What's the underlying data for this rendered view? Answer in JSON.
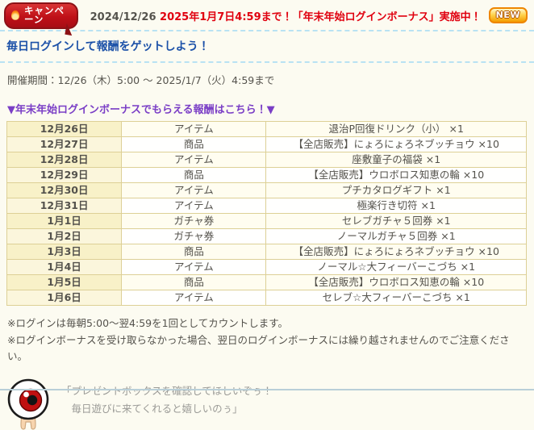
{
  "banner": {
    "badge_label": "キャンペーン",
    "date_prefix": "2024/12/26 ",
    "message": "2025年1月7日4:59まで！「年末年始ログインボーナス」実施中！",
    "new_label": "NEW"
  },
  "headline": "毎日ログインして報酬をゲットしよう！",
  "period": "開催期間：12/26（木）5:00 ～ 2025/1/7（火）4:59まで",
  "table": {
    "caption": "▼年末年始ログインボーナスでもらえる報酬はこちら！▼",
    "rows": [
      {
        "date": "12月26日",
        "type": "アイテム",
        "reward": "退治P回復ドリンク（小） ×1",
        "highlight": false
      },
      {
        "date": "12月27日",
        "type": "商品",
        "reward": "【全店販売】にょろにょろネブッチョウ ×10",
        "highlight": false
      },
      {
        "date": "12月28日",
        "type": "アイテム",
        "reward": "座敷童子の福袋 ×1",
        "highlight": false
      },
      {
        "date": "12月29日",
        "type": "商品",
        "reward": "【全店販売】ウロボロス知恵の輪 ×10",
        "highlight": false
      },
      {
        "date": "12月30日",
        "type": "アイテム",
        "reward": "プチカタログギフト ×1",
        "highlight": false
      },
      {
        "date": "12月31日",
        "type": "アイテム",
        "reward": "極楽行き切符 ×1",
        "highlight": false
      },
      {
        "date": "1月1日",
        "type": "ガチャ券",
        "reward": "セレブガチャ５回券 ×1",
        "highlight": true
      },
      {
        "date": "1月2日",
        "type": "ガチャ券",
        "reward": "ノーマルガチャ５回券 ×1",
        "highlight": false
      },
      {
        "date": "1月3日",
        "type": "商品",
        "reward": "【全店販売】にょろにょろネブッチョウ ×10",
        "highlight": false
      },
      {
        "date": "1月4日",
        "type": "アイテム",
        "reward": "ノーマル☆大フィーバーこづち ×1",
        "highlight": false
      },
      {
        "date": "1月5日",
        "type": "商品",
        "reward": "【全店販売】ウロボロス知恵の輪 ×10",
        "highlight": false
      },
      {
        "date": "1月6日",
        "type": "アイテム",
        "reward": "セレブ☆大フィーバーこづち ×1",
        "highlight": false
      }
    ]
  },
  "notes": {
    "line1": "※ログインは毎朝5:00～翌4:59を1回としてカウントします。",
    "line2": "※ログインボーナスを受け取らなかった場合、翌日のログインボーナスには繰り越されませんのでご注意ください。"
  },
  "character": {
    "icon": "eyeball-character-icon",
    "speech_line1": "「プレゼントボックスを確認してほしいぞぅ！",
    "speech_line2": "　毎日遊びに来てくれると嬉しいのぅ」"
  },
  "colors": {
    "page_bg": "#fcfbf1",
    "banner_red": "#e0000f",
    "badge_red": "#bf1018",
    "new_orange": "#f49c00",
    "headline_blue": "#1c51a8",
    "caption_purple": "#7a3ec6",
    "table_border_gold": "#ddd096",
    "row_yellow": "#f8f1c8",
    "row_ivory": "#fffdf0",
    "highlight_red": "#cc2626",
    "separator_blue": "#b9e2f3"
  }
}
